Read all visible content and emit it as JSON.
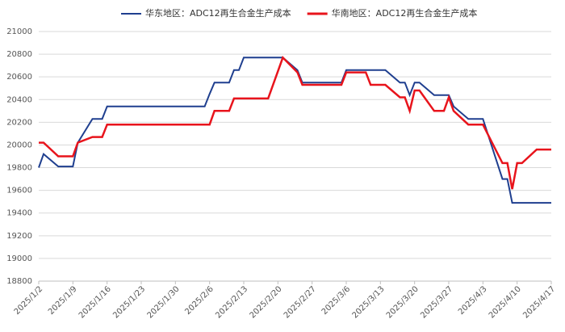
{
  "chart_data": {
    "type": "line",
    "x": [
      "2025/1/2",
      "2025/1/3",
      "2025/1/6",
      "2025/1/9",
      "2025/1/10",
      "2025/1/13",
      "2025/1/15",
      "2025/1/16",
      "2025/2/5",
      "2025/2/6",
      "2025/2/7",
      "2025/2/10",
      "2025/2/11",
      "2025/2/12",
      "2025/2/13",
      "2025/2/18",
      "2025/2/21",
      "2025/2/24",
      "2025/2/25",
      "2025/3/5",
      "2025/3/6",
      "2025/3/10",
      "2025/3/11",
      "2025/3/14",
      "2025/3/17",
      "2025/3/18",
      "2025/3/19",
      "2025/3/20",
      "2025/3/21",
      "2025/3/24",
      "2025/3/26",
      "2025/3/27",
      "2025/3/28",
      "2025/3/31",
      "2025/4/3",
      "2025/4/7",
      "2025/4/8",
      "2025/4/9",
      "2025/4/10",
      "2025/4/11",
      "2025/4/14",
      "2025/4/17"
    ],
    "series": [
      {
        "name": "华东地区：ADC12再生合金生产成本",
        "color": "#1f3f8f",
        "values": [
          19800,
          19920,
          19810,
          19810,
          20020,
          20230,
          20230,
          20340,
          20340,
          20450,
          20550,
          20550,
          20660,
          20660,
          20770,
          20770,
          20770,
          20660,
          20550,
          20550,
          20660,
          20660,
          20660,
          20660,
          20550,
          20550,
          20440,
          20550,
          20550,
          20440,
          20440,
          20440,
          20340,
          20230,
          20230,
          19700,
          19700,
          19490,
          19490,
          19490,
          19490,
          19490
        ]
      },
      {
        "name": "华南地区：ADC12再生合金生产成本",
        "color": "#e8141c",
        "values": [
          20020,
          20020,
          19900,
          19900,
          20020,
          20070,
          20070,
          20180,
          20180,
          20180,
          20300,
          20300,
          20410,
          20410,
          20410,
          20410,
          20770,
          20640,
          20530,
          20530,
          20640,
          20640,
          20530,
          20530,
          20420,
          20420,
          20300,
          20480,
          20480,
          20300,
          20300,
          20420,
          20300,
          20180,
          20180,
          19840,
          19840,
          19610,
          19840,
          19840,
          19960,
          19960
        ]
      }
    ],
    "xlim": [
      "2025/1/2",
      "2025/4/17"
    ],
    "xticks": [
      "2025/1/2",
      "2025/1/9",
      "2025/1/16",
      "2025/1/23",
      "2025/1/30",
      "2025/2/6",
      "2025/2/13",
      "2025/2/20",
      "2025/2/27",
      "2025/3/6",
      "2025/3/13",
      "2025/3/20",
      "2025/3/27",
      "2025/4/3",
      "2025/4/10",
      "2025/4/17"
    ],
    "ylim": [
      18800,
      21000
    ],
    "yticks": [
      18800,
      19000,
      19200,
      19400,
      19600,
      19800,
      20000,
      20200,
      20400,
      20600,
      20800,
      21000
    ],
    "grid": true,
    "legend": "top"
  }
}
